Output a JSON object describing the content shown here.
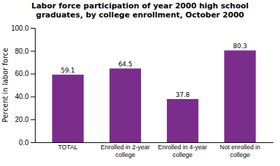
{
  "chart_data": {
    "type": "bar",
    "title": "Labor force participation of year 2000 high school\ngraduates, by college enrollment, October 2000",
    "categories": [
      "TOTAL",
      "Enrolled in 2-year\ncollege",
      "Enrolled in 4-year\ncollege",
      "Not enrolled in\ncollege"
    ],
    "values": [
      59.1,
      64.5,
      37.8,
      80.3
    ],
    "color": "#7b2d8b",
    "ylabel": "Percent in labor force",
    "ylim": [
      0,
      100
    ],
    "yticks": [
      {
        "value": 0,
        "label": "0.0"
      },
      {
        "value": 20,
        "label": "20.0"
      },
      {
        "value": 40,
        "label": "40.0"
      },
      {
        "value": 60,
        "label": "60.0"
      },
      {
        "value": 80,
        "label": "80.0"
      },
      {
        "value": 100,
        "label": "100.0"
      }
    ],
    "grid": false,
    "data_labels": true
  }
}
